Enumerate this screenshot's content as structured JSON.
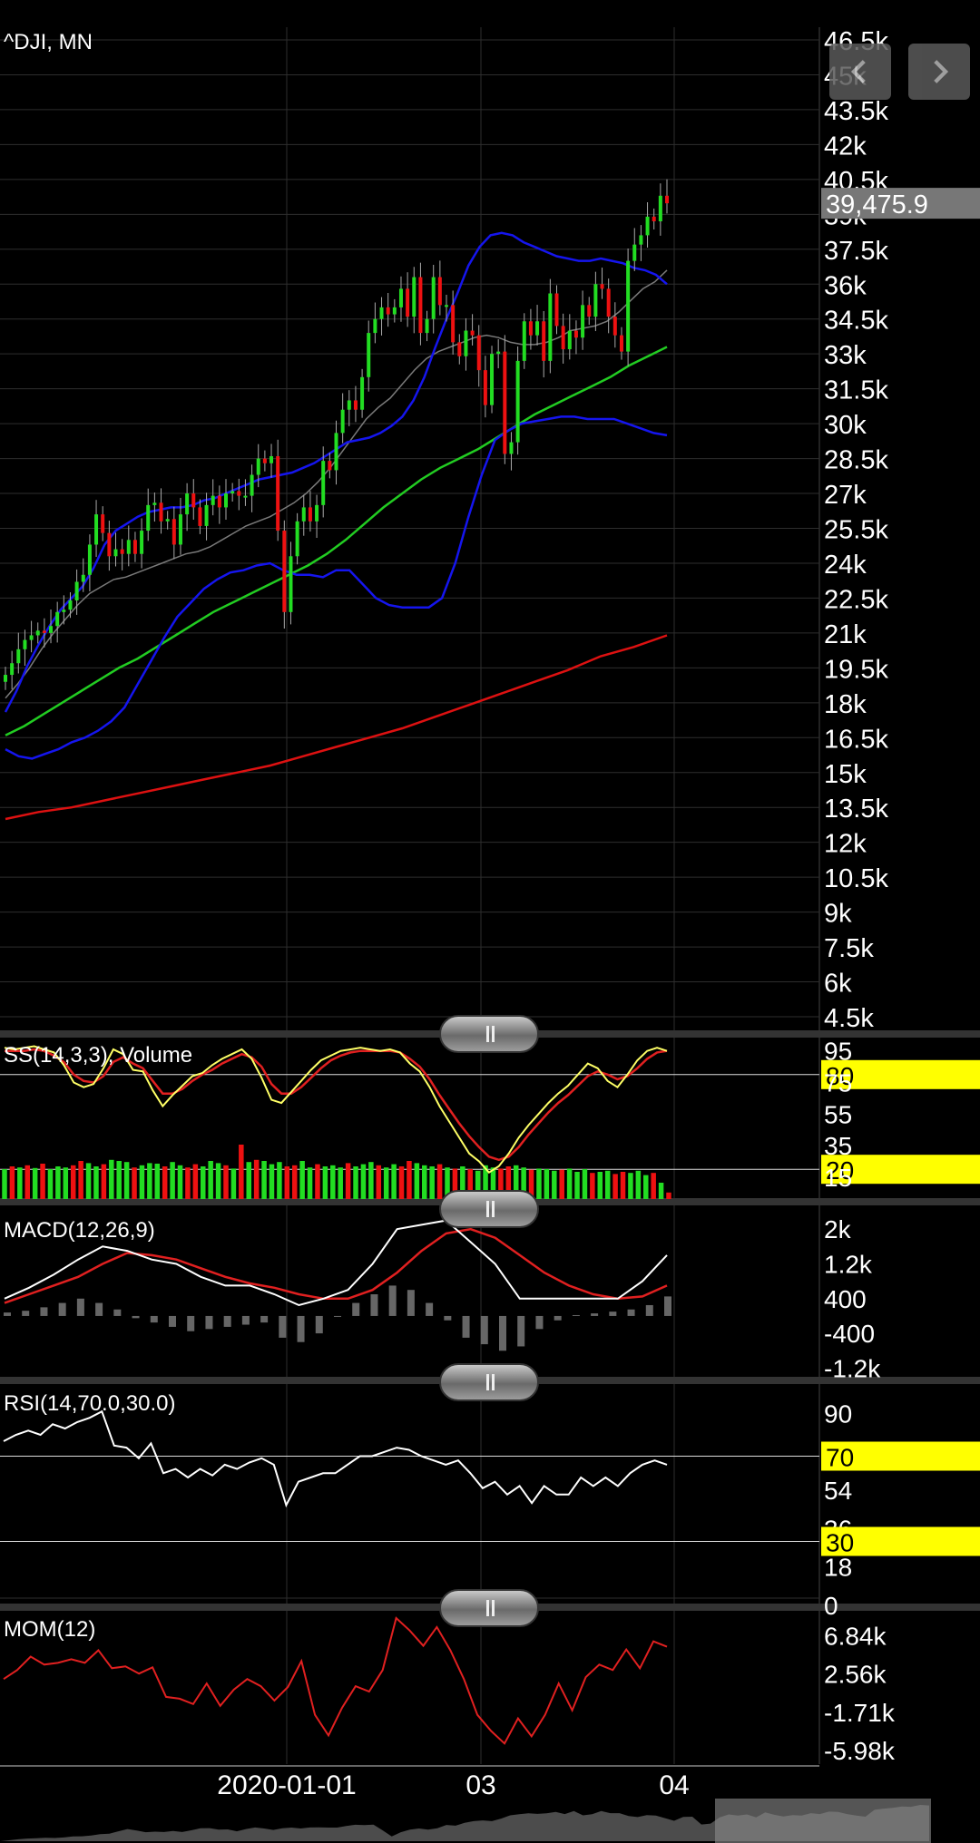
{
  "colors": {
    "bg": "#000000",
    "grid": "#2e2e2e",
    "up": "#22dd22",
    "down": "#ee1111",
    "boll": "#1515ee",
    "ma_gray": "#7a7a7a",
    "ma_green": "#22cc22",
    "ma_red": "#dd1111",
    "yellow": "#ffff00"
  },
  "icons": {
    "prev": "chevron-left-icon",
    "next": "chevron-right-icon"
  },
  "chart_data": [
    {
      "type": "candlestick",
      "title": "^DJI, MN",
      "last_price_label": "39,475.9",
      "ylim": [
        4500,
        46500
      ],
      "y_ticks": [
        46500,
        45000,
        43500,
        42000,
        40500,
        39000,
        37500,
        36000,
        34500,
        33000,
        31500,
        30000,
        28500,
        27000,
        25500,
        24000,
        22500,
        21000,
        19500,
        18000,
        16500,
        15000,
        13500,
        12000,
        10500,
        9000,
        7500,
        6000,
        4500
      ],
      "y_tick_labels": [
        "46.5k",
        "45k",
        "43.5k",
        "42k",
        "40.5k",
        "39k",
        "37.5k",
        "36k",
        "34.5k",
        "33k",
        "31.5k",
        "30k",
        "28.5k",
        "27k",
        "25.5k",
        "24k",
        "22.5k",
        "21k",
        "19.5k",
        "18k",
        "16.5k",
        "15k",
        "13.5k",
        "12k",
        "10.5k",
        "9k",
        "7.5k",
        "6k",
        "4.5k"
      ],
      "x_ticks": [
        "2020-01-01",
        "03",
        "04"
      ],
      "close": [
        19200,
        19700,
        20300,
        20700,
        20900,
        21100,
        21000,
        21300,
        21900,
        22000,
        22400,
        23200,
        23500,
        24800,
        26100,
        25300,
        24300,
        24600,
        24400,
        25000,
        24400,
        25400,
        26500,
        26600,
        25800,
        25900,
        24800,
        26100,
        27000,
        26400,
        25600,
        26500,
        26900,
        26400,
        27000,
        27100,
        26900,
        26900,
        27800,
        28500,
        28300,
        28600,
        25400,
        21900,
        24300,
        25800,
        26400,
        25800,
        26500,
        28400,
        28000,
        29600,
        30600,
        31000,
        30600,
        32000,
        33900,
        34500,
        35000,
        34700,
        35000,
        35800,
        34600,
        36300,
        33900,
        34500,
        36300,
        35100,
        35100,
        33500,
        32900,
        34000,
        33800,
        32300,
        30800,
        33000,
        33100,
        28700,
        29200,
        32700,
        34400,
        33800,
        34400,
        32700,
        35600,
        34200,
        33200,
        34000,
        33700,
        35100,
        34600,
        36000,
        35800,
        34600,
        33800,
        33100,
        37000,
        37700,
        38100,
        38900,
        38700,
        39800,
        39476
      ],
      "upper_band": [
        17600,
        18500,
        19600,
        20500,
        21300,
        22000,
        22500,
        23000,
        23800,
        24800,
        25400,
        25700,
        26000,
        26200,
        26300,
        26400,
        26400,
        26500,
        26700,
        26800,
        27000,
        27200,
        27400,
        27600,
        27700,
        27800,
        27900,
        28100,
        28300,
        28600,
        28900,
        29200,
        29300,
        29400,
        29600,
        29900,
        30300,
        31000,
        32000,
        33300,
        34500,
        35600,
        36800,
        37600,
        38100,
        38200,
        38100,
        37800,
        37600,
        37400,
        37200,
        37100,
        37000,
        37000,
        37100,
        37000,
        36900,
        36700,
        36600,
        36400,
        36000
      ],
      "mid_ma": [
        18200,
        18800,
        19500,
        20300,
        21000,
        21600,
        22200,
        22700,
        23000,
        23300,
        23400,
        23600,
        23800,
        24000,
        24200,
        24400,
        24500,
        24700,
        25000,
        25300,
        25600,
        25800,
        26000,
        26300,
        26600,
        27000,
        27500,
        28100,
        28800,
        29500,
        30200,
        30700,
        31100,
        31700,
        32300,
        32800,
        33100,
        33300,
        33500,
        33700,
        33800,
        33700,
        33500,
        33400,
        33400,
        33500,
        33700,
        34000,
        34100,
        34200,
        34400,
        34800,
        35300,
        35800,
        36100,
        36600
      ],
      "ma_long": [
        16600,
        17000,
        17500,
        18000,
        18500,
        19000,
        19500,
        19900,
        20400,
        20900,
        21400,
        21900,
        22300,
        22700,
        23100,
        23500,
        23900,
        24400,
        25000,
        25700,
        26400,
        27000,
        27600,
        28100,
        28500,
        28900,
        29400,
        29900,
        30400,
        30800,
        31200,
        31600,
        32000,
        32500,
        32900,
        33300
      ],
      "lower_band": [
        16000,
        15700,
        15600,
        15800,
        16000,
        16300,
        16500,
        16800,
        17200,
        17800,
        18800,
        19800,
        20800,
        21700,
        22300,
        22900,
        23300,
        23600,
        23700,
        23900,
        24000,
        23700,
        23500,
        23500,
        23400,
        23700,
        23700,
        23100,
        22500,
        22200,
        22100,
        22100,
        22100,
        22500,
        24000,
        26000,
        27800,
        29300,
        29700,
        30000,
        30100,
        30200,
        30300,
        30300,
        30200,
        30200,
        30200,
        30000,
        29800,
        29600,
        29500
      ],
      "ma_200": [
        13000,
        13300,
        13500,
        13800,
        14100,
        14400,
        14700,
        15000,
        15300,
        15700,
        16100,
        16500,
        16900,
        17400,
        17900,
        18400,
        18900,
        19400,
        20000,
        20400,
        20900
      ]
    },
    {
      "type": "line",
      "title": "SS(14,3,3), Volume",
      "ylim": [
        0,
        100
      ],
      "y_tick_labels": [
        "95",
        "80",
        "75",
        "55",
        "35",
        "20",
        "15"
      ],
      "y_ticks": [
        95,
        80,
        75,
        55,
        35,
        20,
        15
      ],
      "highlight_levels": [
        80,
        20
      ],
      "series": [
        {
          "values": [
            97,
            96,
            97,
            98,
            96,
            94,
            86,
            75,
            72,
            74,
            84,
            96,
            93,
            83,
            82,
            70,
            60,
            67,
            73,
            79,
            81,
            86,
            90,
            93,
            96,
            90,
            78,
            64,
            62,
            69,
            76,
            83,
            89,
            92,
            95,
            96,
            97,
            96,
            95,
            96,
            94,
            87,
            82,
            72,
            60,
            50,
            40,
            30,
            25,
            18,
            22,
            30,
            40,
            48,
            55,
            62,
            68,
            73,
            80,
            87,
            84,
            76,
            72,
            80,
            89,
            95,
            97,
            95
          ]
        },
        {
          "values": [
            95,
            95,
            95,
            96,
            95,
            92,
            88,
            80,
            76,
            75,
            79,
            88,
            91,
            87,
            84,
            76,
            68,
            68,
            71,
            76,
            80,
            83,
            87,
            90,
            93,
            91,
            85,
            74,
            68,
            68,
            72,
            78,
            84,
            89,
            92,
            94,
            95,
            95,
            95,
            95,
            94,
            90,
            85,
            77,
            67,
            58,
            49,
            41,
            34,
            28,
            26,
            28,
            34,
            42,
            49,
            56,
            62,
            67,
            73,
            79,
            82,
            80,
            77,
            79,
            84,
            90,
            94,
            95
          ]
        }
      ],
      "volume": [
        55,
        60,
        58,
        62,
        57,
        65,
        55,
        60,
        58,
        62,
        70,
        66,
        60,
        64,
        72,
        70,
        68,
        58,
        62,
        66,
        65,
        60,
        68,
        62,
        58,
        64,
        60,
        70,
        66,
        62,
        56,
        100,
        68,
        72,
        70,
        64,
        68,
        60,
        62,
        70,
        58,
        64,
        60,
        62,
        58,
        66,
        60,
        64,
        68,
        62,
        58,
        64,
        60,
        70,
        66,
        62,
        60,
        64,
        58,
        56,
        60,
        55,
        52,
        62,
        58,
        56,
        60,
        62,
        58,
        54,
        56,
        55,
        52,
        54,
        56,
        50,
        55,
        48,
        50,
        52,
        46,
        50,
        48,
        52,
        44,
        48,
        30,
        12
      ]
    },
    {
      "type": "line",
      "title": "MACD(12,26,9)",
      "ylim": [
        -1400,
        2400
      ],
      "y_ticks": [
        2000,
        1200,
        400,
        -400,
        -1200
      ],
      "y_tick_labels": [
        "2k",
        "1.2k",
        "400",
        "-400",
        "-1.2k"
      ],
      "series": [
        {
          "values": [
            400,
            650,
            950,
            1300,
            1600,
            1500,
            1300,
            1200,
            900,
            700,
            700,
            500,
            250,
            400,
            600,
            1200,
            2000,
            2100,
            2200,
            1700,
            1200,
            400,
            400,
            400,
            400,
            400,
            800,
            1400
          ]
        },
        {
          "values": [
            300,
            500,
            700,
            900,
            1200,
            1450,
            1400,
            1300,
            1100,
            900,
            750,
            650,
            500,
            400,
            400,
            600,
            1000,
            1500,
            1900,
            2000,
            1800,
            1400,
            1000,
            700,
            500,
            400,
            450,
            700
          ]
        },
        {
          "values": [
            80,
            120,
            200,
            300,
            400,
            300,
            150,
            -50,
            -150,
            -250,
            -350,
            -300,
            -250,
            -200,
            -150,
            -500,
            -600,
            -400,
            0,
            300,
            500,
            700,
            600,
            300,
            -100,
            -500,
            -650,
            -800,
            -700,
            -300,
            -100,
            20,
            60,
            100,
            150,
            250,
            450
          ]
        }
      ]
    },
    {
      "type": "line",
      "title": "RSI(14,70.0,30.0)",
      "ylim": [
        0,
        100
      ],
      "y_ticks": [
        90,
        70,
        54,
        36,
        30,
        18,
        0
      ],
      "y_tick_labels": [
        "90",
        "70",
        "54",
        "36",
        "30",
        "18",
        "0"
      ],
      "highlight_levels": [
        70,
        30
      ],
      "series": [
        {
          "values": [
            77,
            80,
            82,
            80,
            85,
            83,
            86,
            88,
            91,
            75,
            74,
            69,
            76,
            62,
            64,
            60,
            64,
            61,
            66,
            64,
            67,
            69,
            66,
            47,
            58,
            60,
            62,
            62,
            66,
            70,
            70,
            72,
            74,
            73,
            70,
            68,
            66,
            68,
            62,
            55,
            58,
            52,
            56,
            48,
            56,
            52,
            52,
            60,
            56,
            60,
            56,
            62,
            66,
            68,
            66
          ]
        }
      ]
    },
    {
      "type": "line",
      "title": "MOM(12)",
      "ylim": [
        -7500,
        9000
      ],
      "y_ticks": [
        6840,
        2560,
        -1710,
        -5980
      ],
      "y_tick_labels": [
        "6.84k",
        "2.56k",
        "-1.71k",
        "-5.98k"
      ],
      "series": [
        {
          "values": [
            2000,
            3000,
            4500,
            3600,
            3800,
            4200,
            3800,
            5200,
            3200,
            3400,
            2600,
            3300,
            0,
            -200,
            -800,
            1500,
            -1000,
            800,
            2000,
            1200,
            -400,
            1100,
            4000,
            -2000,
            -4300,
            -1200,
            1200,
            600,
            3000,
            8800,
            7400,
            5700,
            7800,
            5200,
            2000,
            -2000,
            -3800,
            -5200,
            -2400,
            -4400,
            -2000,
            1500,
            -1500,
            2200,
            3600,
            3000,
            5300,
            3200,
            6200,
            5600
          ]
        }
      ]
    }
  ]
}
